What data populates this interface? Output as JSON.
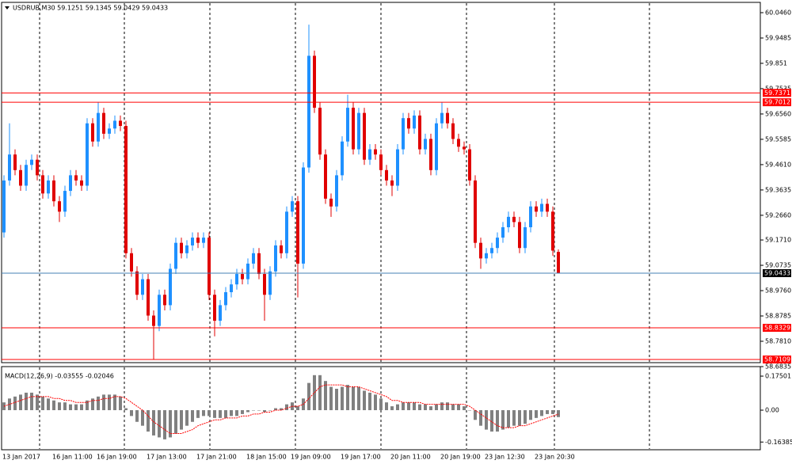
{
  "chart_data": [
    {
      "type": "candlestick",
      "title": "USDRUB,M30  59.1251 59.1345 59.0429 59.0433",
      "categories": [
        "13 Jan 2017",
        null,
        null,
        null,
        null,
        null,
        null,
        null,
        null,
        "16 Jan 11:00",
        null,
        null,
        null,
        null,
        null,
        null,
        null,
        "16 Jan 19:00",
        null,
        null,
        null,
        null,
        null,
        null,
        null,
        null,
        "17 Jan 13:00",
        null,
        null,
        null,
        null,
        null,
        null,
        null,
        null,
        "17 Jan 21:00",
        null,
        null,
        null,
        null,
        null,
        null,
        null,
        null,
        "18 Jan 15:00",
        null,
        null,
        null,
        null,
        null,
        null,
        null,
        "19 Jan 09:00",
        null,
        null,
        null,
        null,
        null,
        null,
        null,
        null,
        "19 Jan 17:00",
        null,
        null,
        null,
        null,
        null,
        null,
        null,
        null,
        "20 Jan 11:00",
        null,
        null,
        null,
        null,
        null,
        null,
        null,
        null,
        "20 Jan 19:00",
        null,
        null,
        null,
        null,
        null,
        null,
        null,
        "23 Jan 12:30",
        null,
        null,
        null,
        null,
        null,
        null,
        null,
        null,
        "23 Jan 20:30",
        null,
        null,
        null,
        null
      ],
      "open": [
        59.2,
        59.4,
        59.5,
        59.44,
        59.38,
        59.46,
        59.48,
        59.42,
        59.35,
        59.4,
        59.32,
        59.28,
        59.36,
        59.42,
        59.4,
        59.38,
        59.62,
        59.55,
        59.66,
        59.58,
        59.6,
        59.63,
        59.61,
        59.12,
        59.05,
        58.96,
        59.02,
        58.88,
        58.84,
        58.96,
        58.92,
        59.06,
        59.16,
        59.12,
        59.15,
        59.18,
        59.16,
        59.18,
        58.96,
        58.86,
        58.92,
        58.97,
        59.0,
        59.04,
        59.02,
        59.08,
        59.12,
        59.04,
        58.96,
        59.05,
        59.15,
        59.12,
        59.28,
        59.32,
        59.08,
        59.45,
        59.88,
        59.68,
        59.5,
        59.33,
        59.3,
        59.42,
        59.55,
        59.68,
        59.52,
        59.66,
        59.48,
        59.52,
        59.5,
        59.44,
        59.4,
        59.38,
        59.52,
        59.64,
        59.6,
        59.65,
        59.52,
        59.56,
        59.44,
        59.62,
        59.66,
        59.62,
        59.56,
        59.53,
        59.52,
        59.4,
        59.16,
        59.1,
        59.12,
        59.14,
        59.18,
        59.22,
        59.26,
        59.24,
        59.14,
        59.22,
        59.3,
        59.28,
        59.31,
        59.28,
        59.1251
      ],
      "high": [
        59.42,
        59.62,
        59.52,
        59.46,
        59.48,
        59.5,
        59.5,
        59.44,
        59.42,
        59.42,
        59.34,
        59.38,
        59.44,
        59.44,
        59.42,
        59.64,
        59.64,
        59.7,
        59.68,
        59.62,
        59.65,
        59.65,
        59.63,
        59.14,
        59.07,
        59.04,
        59.04,
        58.9,
        58.98,
        58.98,
        59.08,
        59.18,
        59.18,
        59.17,
        59.2,
        59.2,
        59.2,
        59.2,
        58.98,
        58.94,
        58.99,
        59.02,
        59.06,
        59.06,
        59.1,
        59.14,
        59.14,
        59.06,
        59.07,
        59.17,
        59.17,
        59.3,
        59.34,
        59.34,
        59.47,
        60.0,
        59.9,
        59.7,
        59.52,
        59.35,
        59.44,
        59.57,
        59.73,
        59.7,
        59.68,
        59.68,
        59.54,
        59.54,
        59.52,
        59.46,
        59.42,
        59.54,
        59.66,
        59.66,
        59.67,
        59.67,
        59.58,
        59.58,
        59.64,
        59.7,
        59.68,
        59.64,
        59.58,
        59.55,
        59.54,
        59.42,
        59.18,
        59.14,
        59.16,
        59.2,
        59.24,
        59.28,
        59.28,
        59.26,
        59.24,
        59.32,
        59.32,
        59.33,
        59.33,
        59.3,
        59.1345
      ],
      "low": [
        59.18,
        59.38,
        59.42,
        59.36,
        59.36,
        59.44,
        59.4,
        59.33,
        59.33,
        59.3,
        59.24,
        59.26,
        59.34,
        59.38,
        59.36,
        59.36,
        59.53,
        59.53,
        59.56,
        59.56,
        59.58,
        59.59,
        59.1,
        59.03,
        58.94,
        58.94,
        58.86,
        58.71,
        58.82,
        58.9,
        58.9,
        59.04,
        59.1,
        59.1,
        59.13,
        59.14,
        59.14,
        58.94,
        58.8,
        58.84,
        58.9,
        58.95,
        58.98,
        59.0,
        59.0,
        59.06,
        59.02,
        58.86,
        58.94,
        59.03,
        59.1,
        59.1,
        59.26,
        58.95,
        59.06,
        59.43,
        59.66,
        59.48,
        59.31,
        59.26,
        59.28,
        59.4,
        59.53,
        59.5,
        59.5,
        59.46,
        59.46,
        59.48,
        59.42,
        59.38,
        59.34,
        59.36,
        59.5,
        59.58,
        59.58,
        59.5,
        59.5,
        59.42,
        59.42,
        59.6,
        59.6,
        59.54,
        59.51,
        59.5,
        59.38,
        59.14,
        59.06,
        59.08,
        59.1,
        59.12,
        59.16,
        59.2,
        59.22,
        59.12,
        59.12,
        59.2,
        59.26,
        59.26,
        59.26,
        59.11,
        59.0429
      ],
      "close": [
        59.4,
        59.5,
        59.44,
        59.38,
        59.46,
        59.48,
        59.42,
        59.35,
        59.4,
        59.32,
        59.28,
        59.36,
        59.42,
        59.4,
        59.38,
        59.62,
        59.55,
        59.66,
        59.58,
        59.6,
        59.63,
        59.61,
        59.12,
        59.05,
        58.96,
        59.02,
        58.88,
        58.84,
        58.96,
        58.92,
        59.06,
        59.16,
        59.12,
        59.15,
        59.18,
        59.16,
        59.18,
        58.96,
        58.86,
        58.92,
        58.97,
        59.0,
        59.04,
        59.02,
        59.08,
        59.12,
        59.04,
        58.96,
        59.05,
        59.15,
        59.12,
        59.28,
        59.32,
        59.08,
        59.45,
        59.88,
        59.68,
        59.5,
        59.33,
        59.3,
        59.42,
        59.55,
        59.68,
        59.52,
        59.66,
        59.48,
        59.52,
        59.5,
        59.44,
        59.4,
        59.38,
        59.52,
        59.64,
        59.6,
        59.65,
        59.52,
        59.56,
        59.44,
        59.62,
        59.66,
        59.62,
        59.56,
        59.53,
        59.52,
        59.4,
        59.16,
        59.1,
        59.12,
        59.14,
        59.18,
        59.22,
        59.26,
        59.24,
        59.14,
        59.22,
        59.3,
        59.28,
        59.31,
        59.28,
        59.13,
        59.0433
      ],
      "up_color": "#1e90ff",
      "down_color": "#e00000",
      "ylim": [
        58.6835,
        60.046
      ],
      "yticks": [
        {
          "value": 60.046,
          "label": "60.0460"
        },
        59.9485,
        59.851,
        {
          "value": 59.7535,
          "label": "59.7535"
        },
        {
          "value": 59.656,
          "label": "59.6560"
        },
        59.5585,
        {
          "value": 59.461,
          "label": "59.4610"
        },
        59.3635,
        {
          "value": 59.266,
          "label": "59.2660"
        },
        {
          "value": 59.171,
          "label": "59.1710"
        },
        59.0735,
        {
          "value": 58.976,
          "label": "58.9760"
        },
        58.8785,
        {
          "value": 58.781,
          "label": "58.7810"
        },
        58.6835
      ],
      "levels": [
        59.7371,
        59.7012,
        58.8329,
        58.7109
      ],
      "level_color": "#ff0000",
      "price_line": 59.0433,
      "price_line_color": "#4682b4",
      "grid": true
    },
    {
      "type": "macd",
      "title": "MACD(12,26,9) -0.03555 -0.02046",
      "series": [
        {
          "color": "#808080",
          "values": [
            0.04,
            0.06,
            0.07,
            0.08,
            0.09,
            0.09,
            0.08,
            0.07,
            0.06,
            0.05,
            0.04,
            0.04,
            0.03,
            0.03,
            0.03,
            0.05,
            0.06,
            0.07,
            0.08,
            0.08,
            0.08,
            0.07,
            0.01,
            -0.03,
            -0.06,
            -0.08,
            -0.11,
            -0.13,
            -0.14,
            -0.15,
            -0.14,
            -0.12,
            -0.1,
            -0.08,
            -0.06,
            -0.04,
            -0.03,
            -0.03,
            -0.04,
            -0.04,
            -0.04,
            -0.03,
            -0.03,
            -0.02,
            -0.01,
            0.0,
            0.0,
            -0.01,
            0.0,
            0.01,
            0.01,
            0.03,
            0.04,
            0.02,
            0.06,
            0.14,
            0.18,
            0.18,
            0.15,
            0.12,
            0.11,
            0.12,
            0.13,
            0.12,
            0.12,
            0.1,
            0.09,
            0.08,
            0.06,
            0.04,
            0.02,
            0.03,
            0.04,
            0.04,
            0.04,
            0.03,
            0.03,
            0.02,
            0.03,
            0.04,
            0.04,
            0.03,
            0.03,
            0.02,
            0.0,
            -0.05,
            -0.08,
            -0.1,
            -0.11,
            -0.11,
            -0.1,
            -0.09,
            -0.08,
            -0.08,
            -0.07,
            -0.05,
            -0.04,
            -0.03,
            -0.02,
            -0.02,
            -0.03555
          ]
        },
        {
          "color": "#ff0000",
          "values": [
            0.02,
            0.03,
            0.04,
            0.05,
            0.06,
            0.07,
            0.07,
            0.07,
            0.07,
            0.06,
            0.06,
            0.05,
            0.05,
            0.04,
            0.04,
            0.04,
            0.05,
            0.05,
            0.06,
            0.06,
            0.07,
            0.07,
            0.06,
            0.04,
            0.02,
            0.0,
            -0.03,
            -0.06,
            -0.08,
            -0.1,
            -0.12,
            -0.12,
            -0.12,
            -0.11,
            -0.1,
            -0.08,
            -0.07,
            -0.06,
            -0.05,
            -0.05,
            -0.04,
            -0.04,
            -0.04,
            -0.03,
            -0.03,
            -0.02,
            -0.02,
            -0.01,
            -0.01,
            0.0,
            0.0,
            0.01,
            0.02,
            0.02,
            0.03,
            0.06,
            0.09,
            0.12,
            0.13,
            0.13,
            0.13,
            0.13,
            0.12,
            0.12,
            0.12,
            0.11,
            0.1,
            0.09,
            0.08,
            0.07,
            0.05,
            0.05,
            0.04,
            0.04,
            0.04,
            0.04,
            0.03,
            0.03,
            0.03,
            0.03,
            0.03,
            0.03,
            0.03,
            0.03,
            0.02,
            0.0,
            -0.02,
            -0.04,
            -0.06,
            -0.08,
            -0.09,
            -0.09,
            -0.09,
            -0.08,
            -0.08,
            -0.07,
            -0.06,
            -0.05,
            -0.04,
            -0.03,
            -0.02046
          ]
        }
      ],
      "ylim": [
        -0.2035,
        0.224
      ],
      "yticks": [
        0.17501,
        {
          "value": 0,
          "label": "0.00"
        },
        -0.16385
      ]
    }
  ]
}
